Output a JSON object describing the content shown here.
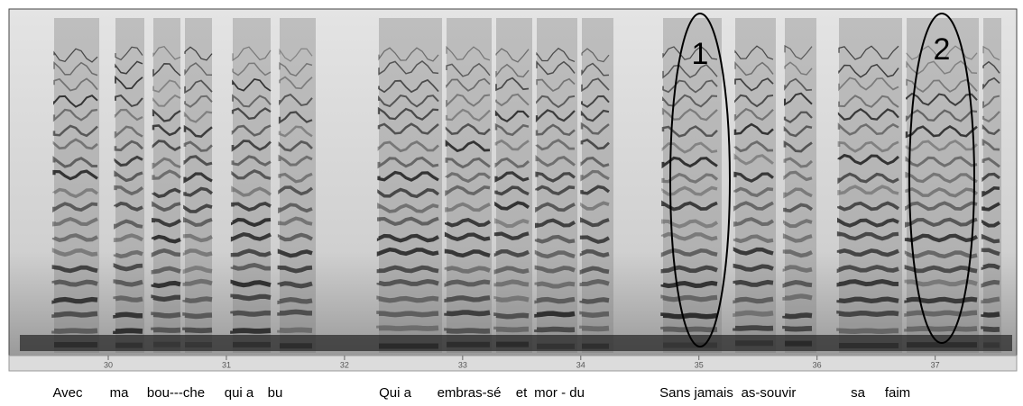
{
  "chart_data": {
    "type": "spectrogram",
    "xlim": [
      29.16,
      37.69
    ],
    "xticks": [
      30,
      31,
      32,
      33,
      34,
      35,
      36,
      37
    ],
    "annotations": [
      "1",
      "2"
    ]
  },
  "lyrics": [
    "Avec",
    "ma",
    "bou---che",
    "qui a",
    "bu",
    "Qui a",
    "embras-sé",
    "et",
    "mor - du",
    "Sans jamais",
    "as-souvir",
    "sa",
    "faim"
  ]
}
